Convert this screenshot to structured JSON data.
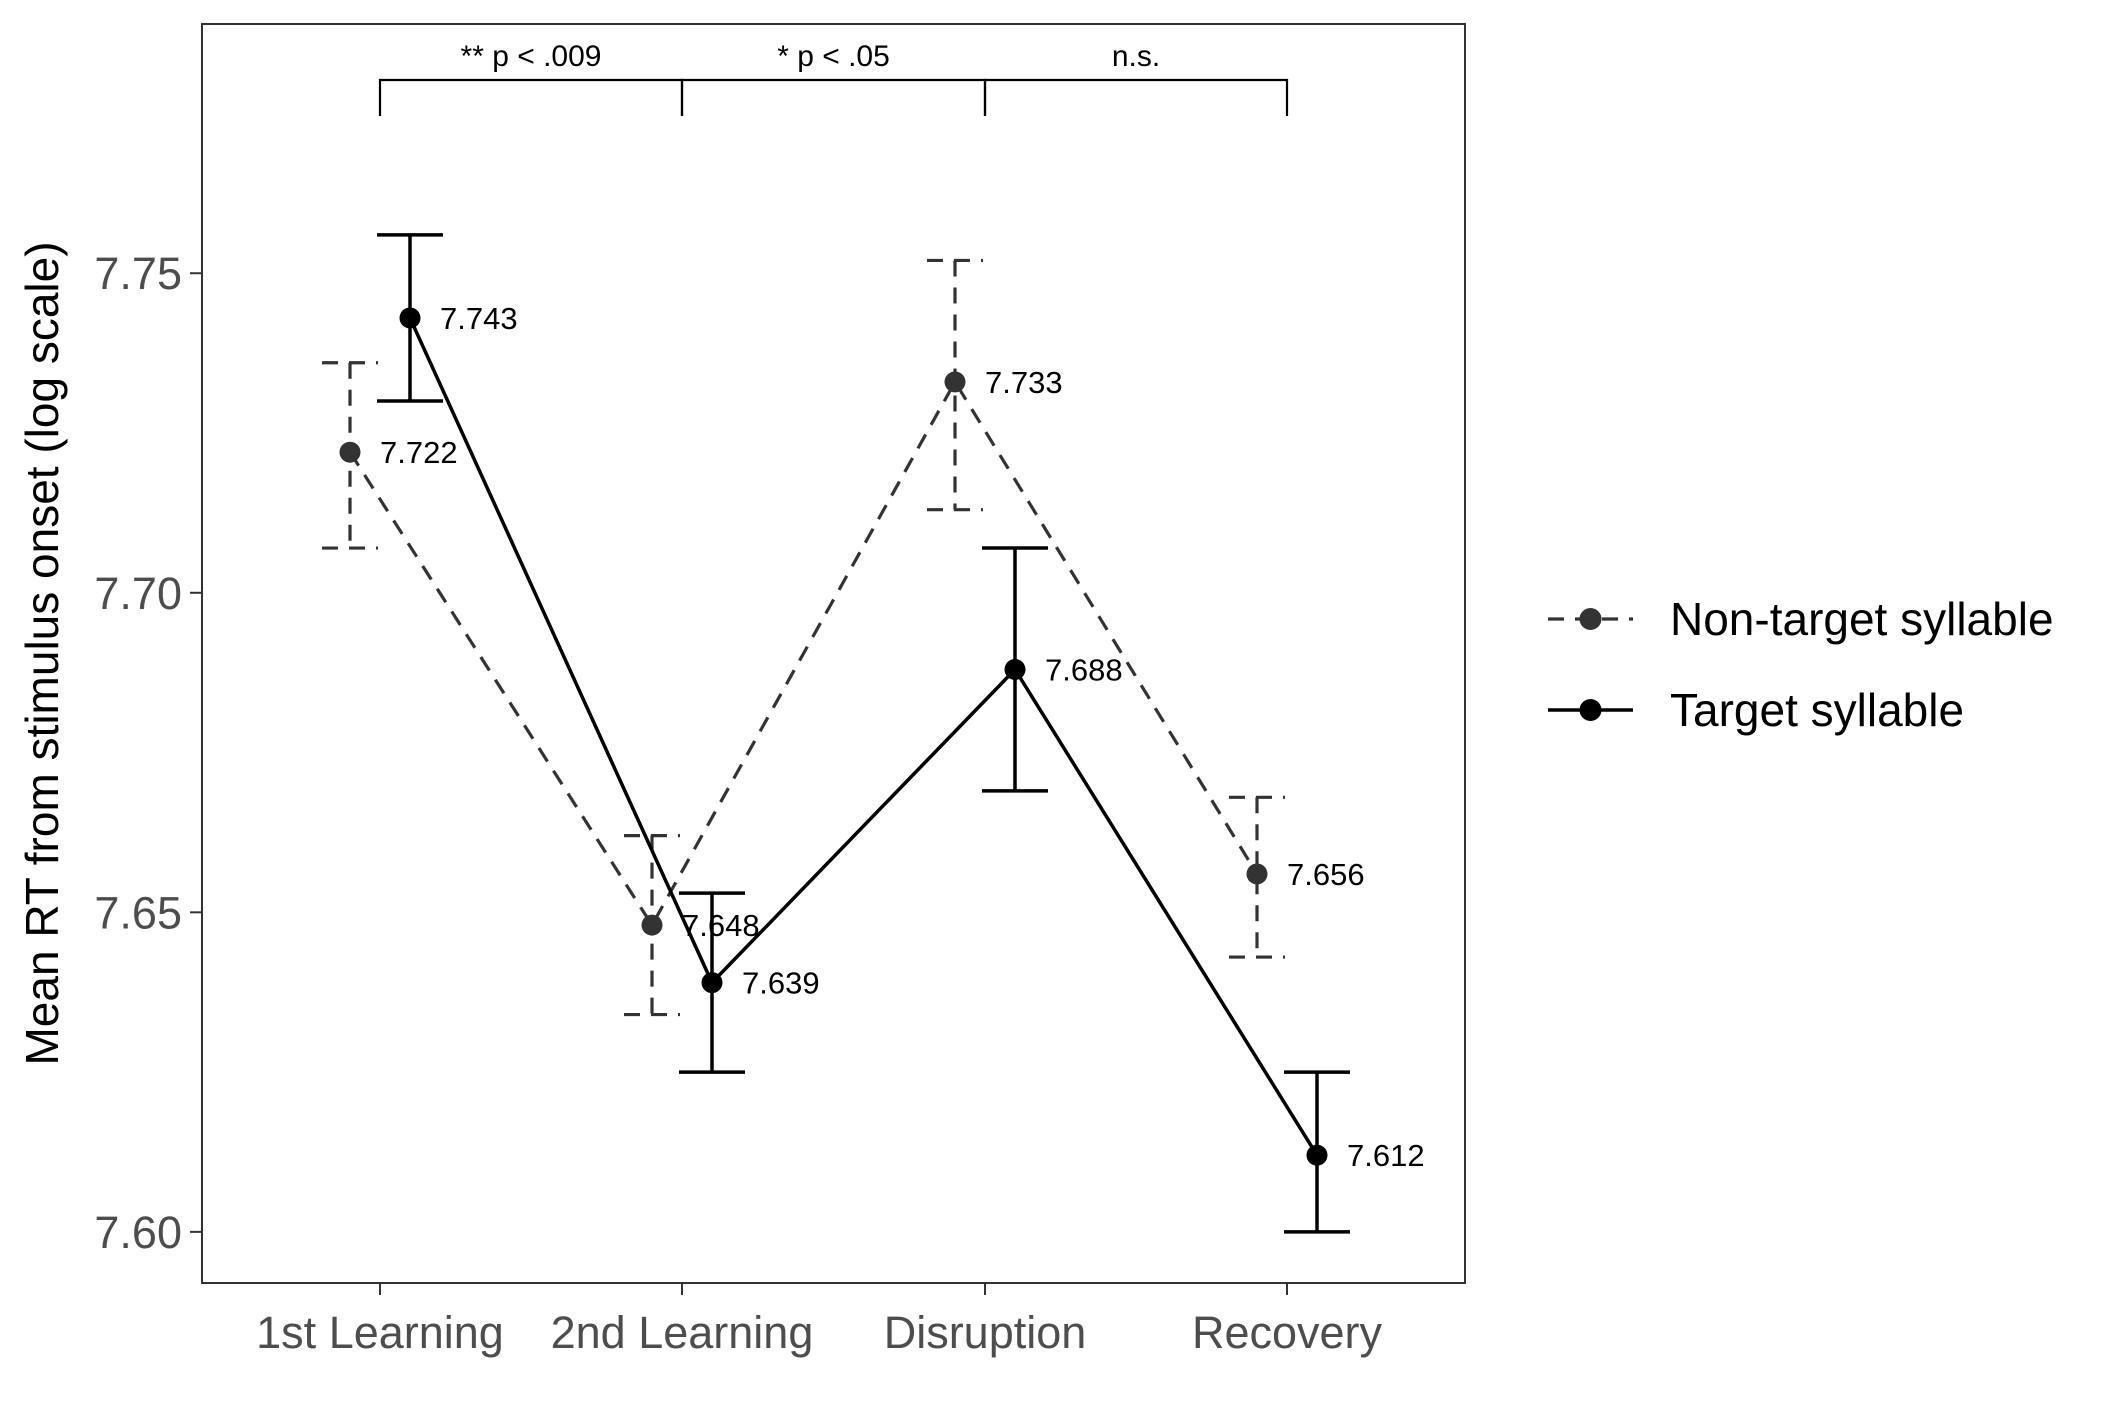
{
  "chart_data": {
    "type": "line",
    "title": "",
    "xlabel": "",
    "ylabel": "Mean RT from stimulus onset (log scale)",
    "categories": [
      "1st Learning",
      "2nd Learning",
      "Disruption",
      "Recovery"
    ],
    "ylim": [
      7.592,
      7.789
    ],
    "y_ticks": [
      7.6,
      7.65,
      7.7,
      7.75
    ],
    "y_tick_labels": [
      "7.60",
      "7.65",
      "7.70",
      "7.75"
    ],
    "grid": false,
    "legend_position": "right",
    "series": [
      {
        "name": "Non-target syllable",
        "line_style": "dashed",
        "color": "#333333",
        "values": [
          7.722,
          7.648,
          7.733,
          7.656
        ],
        "value_labels": [
          "7.722",
          "7.648",
          "7.733",
          "7.656"
        ],
        "error_low": [
          7.707,
          7.634,
          7.713,
          7.643
        ],
        "error_high": [
          7.736,
          7.662,
          7.752,
          7.668
        ]
      },
      {
        "name": "Target syllable",
        "line_style": "solid",
        "color": "#000000",
        "values": [
          7.743,
          7.639,
          7.688,
          7.612
        ],
        "value_labels": [
          "7.743",
          "7.639",
          "7.688",
          "7.612"
        ],
        "error_low": [
          7.73,
          7.625,
          7.669,
          7.6
        ],
        "error_high": [
          7.756,
          7.653,
          7.707,
          7.625
        ]
      }
    ],
    "annotations": [
      {
        "from": "1st Learning",
        "to": "2nd Learning",
        "text": "** p < .009"
      },
      {
        "from": "2nd Learning",
        "to": "Disruption",
        "text": "* p < .05"
      },
      {
        "from": "Disruption",
        "to": "Recovery",
        "text": "n.s."
      }
    ]
  }
}
